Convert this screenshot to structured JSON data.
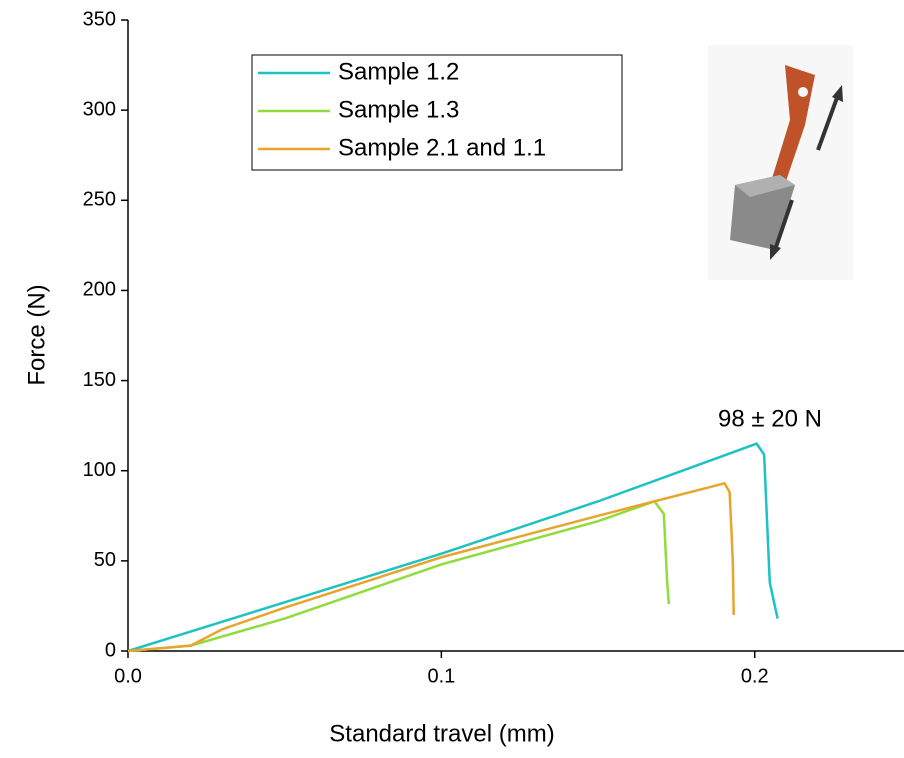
{
  "chart_data": {
    "type": "line",
    "x_label": "Standard travel (mm)",
    "y_label": "Force (N)",
    "annotation": "98 ± 20 N",
    "xlim": [
      0,
      0.247
    ],
    "ylim": [
      0,
      350
    ],
    "xticks": [
      {
        "value": 0,
        "label": "0.0"
      },
      0.1,
      0.2
    ],
    "yticks": [
      0,
      50,
      100,
      150,
      200,
      250,
      300,
      350
    ],
    "series": [
      {
        "name": "Sample 1.2",
        "color": "#1fc2c2",
        "x": [
          0,
          0.05,
          0.1,
          0.15,
          0.2006,
          0.203,
          0.2048,
          0.2073
        ],
        "values": [
          0,
          27,
          54,
          83,
          115,
          109,
          38,
          18
        ]
      },
      {
        "name": "Sample 1.3",
        "color": "#8fdc3c",
        "x": [
          0,
          0.02,
          0.05,
          0.1,
          0.15,
          0.168,
          0.171,
          0.172,
          0.1726
        ],
        "values": [
          0,
          3,
          18,
          48,
          72,
          83,
          76,
          40,
          26
        ]
      },
      {
        "name": "Sample 2.1 and 1.1",
        "color": "#e8a52e",
        "x": [
          0,
          0.02,
          0.03,
          0.05,
          0.1,
          0.15,
          0.1904,
          0.192,
          0.193,
          0.1933
        ],
        "values": [
          0,
          3,
          12,
          24,
          52,
          75,
          93,
          88,
          50,
          20
        ]
      }
    ]
  }
}
